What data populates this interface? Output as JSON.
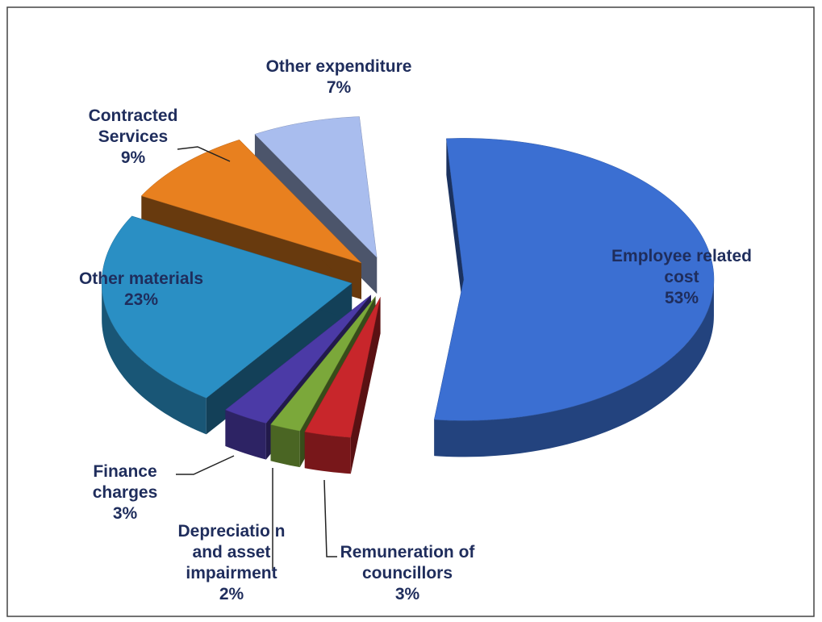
{
  "chart_data": {
    "type": "pie",
    "categories": [
      "Employee related cost",
      "Remuneration of councillors",
      "Depreciatio n and asset impairment",
      "Finance charges",
      "Other materials",
      "Contracted Services",
      "Other expenditure"
    ],
    "values": [
      53,
      3,
      2,
      3,
      23,
      9,
      7
    ],
    "value_labels": [
      "53%",
      "3%",
      "2%",
      "3%",
      "23%",
      "9%",
      "7%"
    ],
    "colors": [
      "#3b6fd2",
      "#c8262b",
      "#7ba83a",
      "#4b3aa6",
      "#2a8fc4",
      "#e8801f",
      "#a9bdee"
    ]
  }
}
